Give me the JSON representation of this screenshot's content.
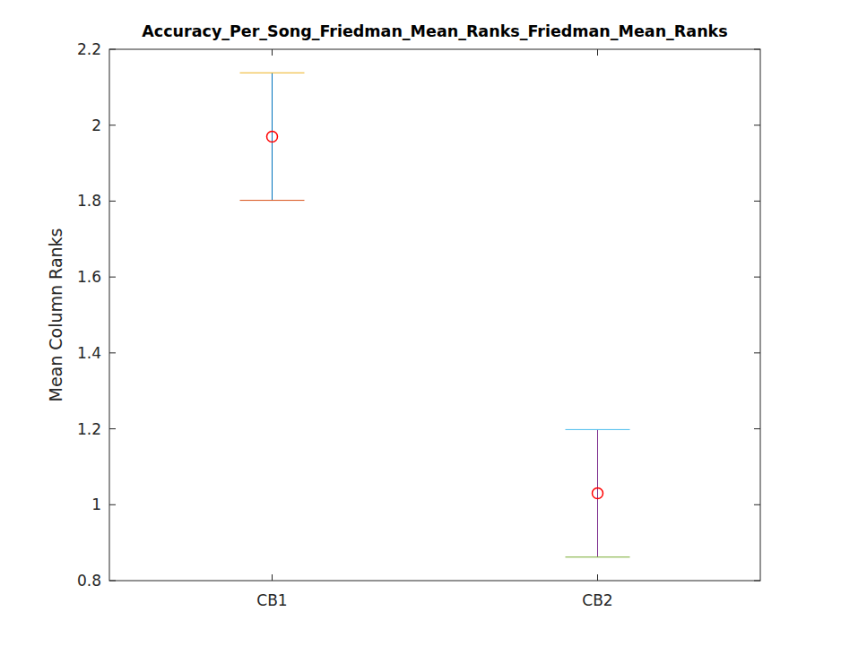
{
  "chart_data": {
    "type": "errorbar",
    "title": "Accuracy_Per_Song_Friedman_Mean_Ranks_Friedman_Mean_Ranks",
    "y_label": "Mean Column Ranks",
    "categories": [
      "CB1",
      "CB2"
    ],
    "values": [
      1.97,
      1.03
    ],
    "errors": [
      0.168,
      0.168
    ],
    "colors": [
      "#0072bd",
      "#7e2f8e"
    ],
    "color": "#ff0000",
    "marker": "circle",
    "ylim": [
      0.8,
      2.2
    ],
    "yticks": [
      0.8,
      1,
      1.2,
      1.4,
      1.6,
      1.8,
      2,
      2.2
    ],
    "grid": false
  }
}
